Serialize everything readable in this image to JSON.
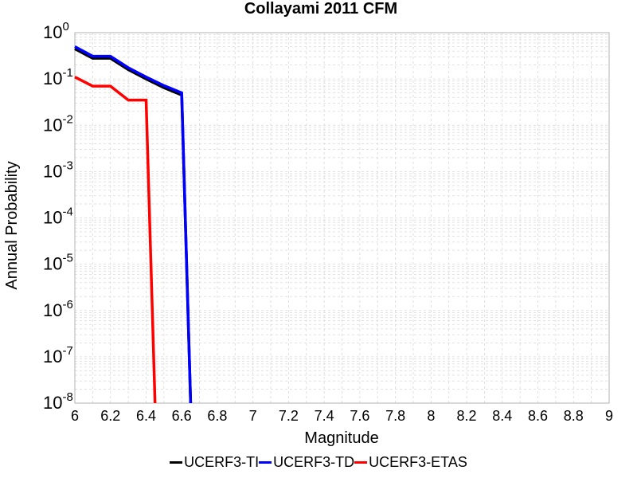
{
  "chart_data": {
    "type": "line",
    "title": "Collayami 2011 CFM",
    "xlabel": "Magnitude",
    "ylabel": "Annual Probability",
    "xlim": [
      6,
      9
    ],
    "ylim": [
      1e-08,
      1
    ],
    "yscale": "log",
    "grid": true,
    "legend": "bottom",
    "x_ticks": [
      "6",
      "6.2",
      "6.4",
      "6.6",
      "6.8",
      "7",
      "7.2",
      "7.4",
      "7.6",
      "7.8",
      "8",
      "8.2",
      "8.4",
      "8.6",
      "8.8",
      "9"
    ],
    "y_ticks": [
      {
        "base": "10",
        "exp": "0"
      },
      {
        "base": "10",
        "exp": "-1"
      },
      {
        "base": "10",
        "exp": "-2"
      },
      {
        "base": "10",
        "exp": "-3"
      },
      {
        "base": "10",
        "exp": "-4"
      },
      {
        "base": "10",
        "exp": "-5"
      },
      {
        "base": "10",
        "exp": "-6"
      },
      {
        "base": "10",
        "exp": "-7"
      },
      {
        "base": "10",
        "exp": "-8"
      }
    ],
    "series": [
      {
        "name": "UCERF3-TI",
        "color": "#000000",
        "x": [
          6.0,
          6.1,
          6.2,
          6.3,
          6.4,
          6.5,
          6.6,
          6.65
        ],
        "y": [
          0.45,
          0.28,
          0.28,
          0.16,
          0.1,
          0.065,
          0.045,
          1e-08
        ]
      },
      {
        "name": "UCERF3-TD",
        "color": "#0000ff",
        "x": [
          6.0,
          6.1,
          6.2,
          6.3,
          6.4,
          6.5,
          6.6,
          6.65
        ],
        "y": [
          0.5,
          0.31,
          0.31,
          0.175,
          0.11,
          0.072,
          0.05,
          1e-08
        ]
      },
      {
        "name": "UCERF3-ETAS",
        "color": "#ff0000",
        "x": [
          6.0,
          6.1,
          6.2,
          6.3,
          6.4,
          6.45
        ],
        "y": [
          0.11,
          0.07,
          0.07,
          0.035,
          0.035,
          1e-08
        ]
      }
    ]
  }
}
